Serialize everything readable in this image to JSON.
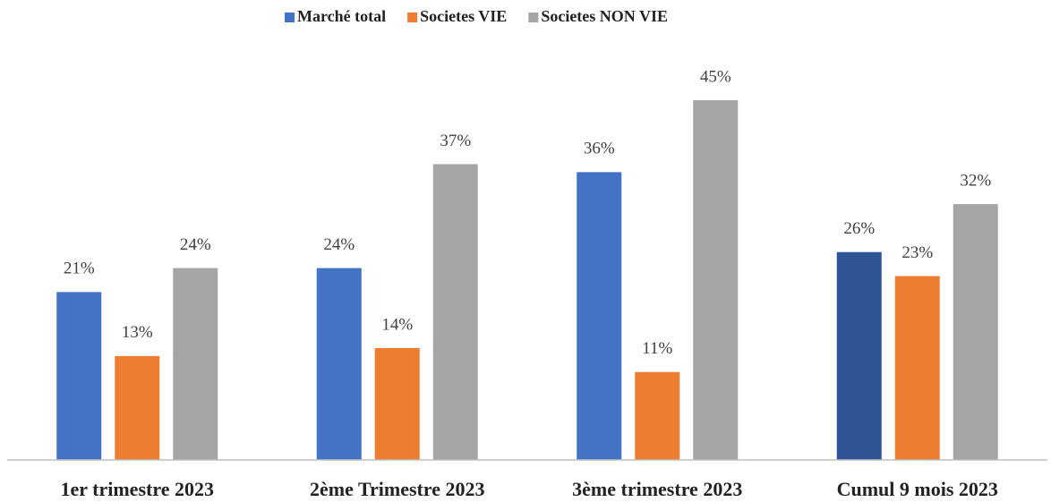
{
  "chart_data": {
    "type": "bar",
    "categories": [
      "1er trimestre 2023",
      "2ème Trimestre 2023",
      "3ème trimestre 2023",
      "Cumul 9 mois 2023"
    ],
    "series": [
      {
        "name": "Marché total",
        "color": "#4472c4",
        "colors": [
          "#4472c4",
          "#4472c4",
          "#4472c4",
          "#2f5597"
        ],
        "values": [
          21,
          24,
          36,
          26
        ],
        "value_labels": [
          "21%",
          "24%",
          "36%",
          "26%"
        ]
      },
      {
        "name": "Societes VIE",
        "color": "#ed7d31",
        "values": [
          13,
          14,
          11,
          23
        ],
        "value_labels": [
          "13%",
          "14%",
          "11%",
          "23%"
        ]
      },
      {
        "name": "Societes NON VIE",
        "color": "#a5a5a5",
        "values": [
          24,
          37,
          45,
          32
        ],
        "value_labels": [
          "24%",
          "37%",
          "45%",
          "32%"
        ]
      }
    ],
    "ylim": [
      0,
      50
    ],
    "legend": "top"
  }
}
